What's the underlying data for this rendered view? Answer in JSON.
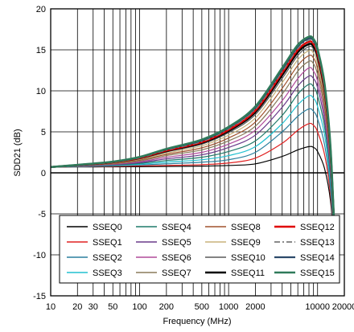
{
  "chart_data": {
    "type": "line",
    "title": "",
    "xlabel": "Frequency (MHz)",
    "ylabel": "SDD21 (dB)",
    "xscale": "log",
    "xlim": [
      10,
      20000
    ],
    "ylim": [
      -15,
      20
    ],
    "grid": true,
    "legend_position": "bottom",
    "x_ticks": [
      {
        "value": 10,
        "label": "10"
      },
      {
        "value": 20,
        "label": "20"
      },
      {
        "value": 30,
        "label": "30"
      },
      {
        "value": 50,
        "label": "50"
      },
      {
        "value": 100,
        "label": "100"
      },
      {
        "value": 200,
        "label": "200"
      },
      {
        "value": 500,
        "label": "500"
      },
      {
        "value": 1000,
        "label": "1000"
      },
      {
        "value": 2000,
        "label": "2000"
      },
      {
        "value": 10000,
        "label": "10000"
      },
      {
        "value": 20000,
        "label": "20000"
      }
    ],
    "y_ticks": [
      -15,
      -10,
      -5,
      0,
      5,
      10,
      15,
      20
    ],
    "x": [
      10,
      20,
      50,
      100,
      200,
      500,
      1000,
      2000,
      4000,
      6000,
      8000,
      9000,
      10000,
      12000,
      14000,
      16000
    ],
    "series": [
      {
        "name": "SSEQ0",
        "color": "#000000",
        "width": 1.2,
        "dash": "",
        "values": [
          0.7,
          0.72,
          0.73,
          0.75,
          0.78,
          0.82,
          0.9,
          1.1,
          2.0,
          2.8,
          3.2,
          3.1,
          2.6,
          0.5,
          -3.5,
          -11
        ]
      },
      {
        "name": "SSEQ1",
        "color": "#e02020",
        "width": 1.2,
        "dash": "",
        "values": [
          0.7,
          0.75,
          0.8,
          0.85,
          0.9,
          1.0,
          1.2,
          1.8,
          3.6,
          5.2,
          6.0,
          5.8,
          5.0,
          2.2,
          -2.8,
          -11
        ]
      },
      {
        "name": "SSEQ2",
        "color": "#2a7f9e",
        "width": 1.2,
        "dash": "",
        "values": [
          0.7,
          0.77,
          0.85,
          0.95,
          1.1,
          1.3,
          1.6,
          2.5,
          5.0,
          6.9,
          7.8,
          7.5,
          6.6,
          3.4,
          -2.0,
          -11
        ]
      },
      {
        "name": "SSEQ3",
        "color": "#20c0d0",
        "width": 1.2,
        "dash": "",
        "values": [
          0.7,
          0.8,
          0.9,
          1.05,
          1.3,
          1.6,
          2.1,
          3.2,
          6.0,
          8.3,
          9.4,
          9.1,
          8.1,
          4.6,
          -1.3,
          -11
        ]
      },
      {
        "name": "SSEQ4",
        "color": "#1f7a6a",
        "width": 1.2,
        "dash": "",
        "values": [
          0.7,
          0.82,
          0.95,
          1.15,
          1.5,
          1.9,
          2.6,
          3.9,
          7.0,
          9.6,
          10.8,
          10.5,
          9.4,
          5.6,
          -0.6,
          -11
        ]
      },
      {
        "name": "SSEQ5",
        "color": "#6a3a8a",
        "width": 1.2,
        "dash": "",
        "values": [
          0.7,
          0.84,
          1.0,
          1.25,
          1.7,
          2.2,
          3.1,
          4.6,
          8.0,
          10.6,
          11.8,
          11.5,
          10.4,
          6.4,
          0.0,
          -11
        ]
      },
      {
        "name": "SSEQ6",
        "color": "#b04a9a",
        "width": 1.2,
        "dash": "",
        "values": [
          0.7,
          0.86,
          1.05,
          1.35,
          1.9,
          2.5,
          3.5,
          5.2,
          8.8,
          11.5,
          12.8,
          12.4,
          11.2,
          7.1,
          0.5,
          -11
        ]
      },
      {
        "name": "SSEQ7",
        "color": "#8a7a5a",
        "width": 1.2,
        "dash": "",
        "values": [
          0.7,
          0.88,
          1.1,
          1.45,
          2.1,
          2.8,
          3.9,
          5.7,
          9.6,
          12.4,
          13.6,
          13.3,
          12.0,
          7.8,
          1.0,
          -11
        ]
      },
      {
        "name": "SSEQ8",
        "color": "#a0522d",
        "width": 1.2,
        "dash": "",
        "values": [
          0.7,
          0.9,
          1.15,
          1.55,
          2.25,
          3.05,
          4.25,
          6.2,
          10.3,
          13.1,
          14.3,
          14.0,
          12.7,
          8.4,
          1.4,
          -11
        ]
      },
      {
        "name": "SSEQ9",
        "color": "#c8b27a",
        "width": 1.2,
        "dash": "",
        "values": [
          0.7,
          0.92,
          1.2,
          1.65,
          2.4,
          3.3,
          4.6,
          6.7,
          11.0,
          13.8,
          14.9,
          14.6,
          13.3,
          9.0,
          1.8,
          -11
        ]
      },
      {
        "name": "SSEQ10",
        "color": "#5a5a5a",
        "width": 1.2,
        "dash": "",
        "values": [
          0.7,
          0.93,
          1.25,
          1.72,
          2.55,
          3.5,
          4.9,
          7.1,
          11.5,
          14.3,
          15.4,
          15.1,
          13.8,
          9.5,
          2.1,
          -11
        ]
      },
      {
        "name": "SSEQ11",
        "color": "#000000",
        "width": 2.4,
        "dash": "",
        "values": [
          0.7,
          0.94,
          1.28,
          1.78,
          2.65,
          3.65,
          5.1,
          7.4,
          11.9,
          14.7,
          15.7,
          15.4,
          14.2,
          9.9,
          2.4,
          -11
        ]
      },
      {
        "name": "SSEQ12",
        "color": "#e00000",
        "width": 2.4,
        "dash": "",
        "values": [
          0.7,
          0.95,
          1.3,
          1.82,
          2.72,
          3.75,
          5.25,
          7.6,
          12.2,
          15.0,
          16.0,
          15.7,
          14.5,
          10.2,
          2.6,
          -11
        ]
      },
      {
        "name": "SSEQ13",
        "color": "#8a8a8a",
        "width": 2.0,
        "dash": "7,3,2,3",
        "values": [
          0.7,
          0.95,
          1.32,
          1.86,
          2.8,
          3.85,
          5.4,
          7.8,
          12.4,
          15.2,
          16.2,
          15.9,
          14.7,
          10.4,
          2.8,
          -11
        ]
      },
      {
        "name": "SSEQ14",
        "color": "#2c4a6a",
        "width": 2.2,
        "dash": "",
        "values": [
          0.7,
          0.96,
          1.34,
          1.9,
          2.86,
          3.95,
          5.5,
          7.95,
          12.6,
          15.4,
          16.4,
          16.1,
          14.9,
          10.6,
          2.9,
          -11
        ]
      },
      {
        "name": "SSEQ15",
        "color": "#2f7a5a",
        "width": 2.6,
        "dash": "",
        "values": [
          0.7,
          0.97,
          1.36,
          1.93,
          2.92,
          4.05,
          5.6,
          8.1,
          12.8,
          15.6,
          16.6,
          16.3,
          15.1,
          10.8,
          3.0,
          -11
        ]
      }
    ]
  }
}
